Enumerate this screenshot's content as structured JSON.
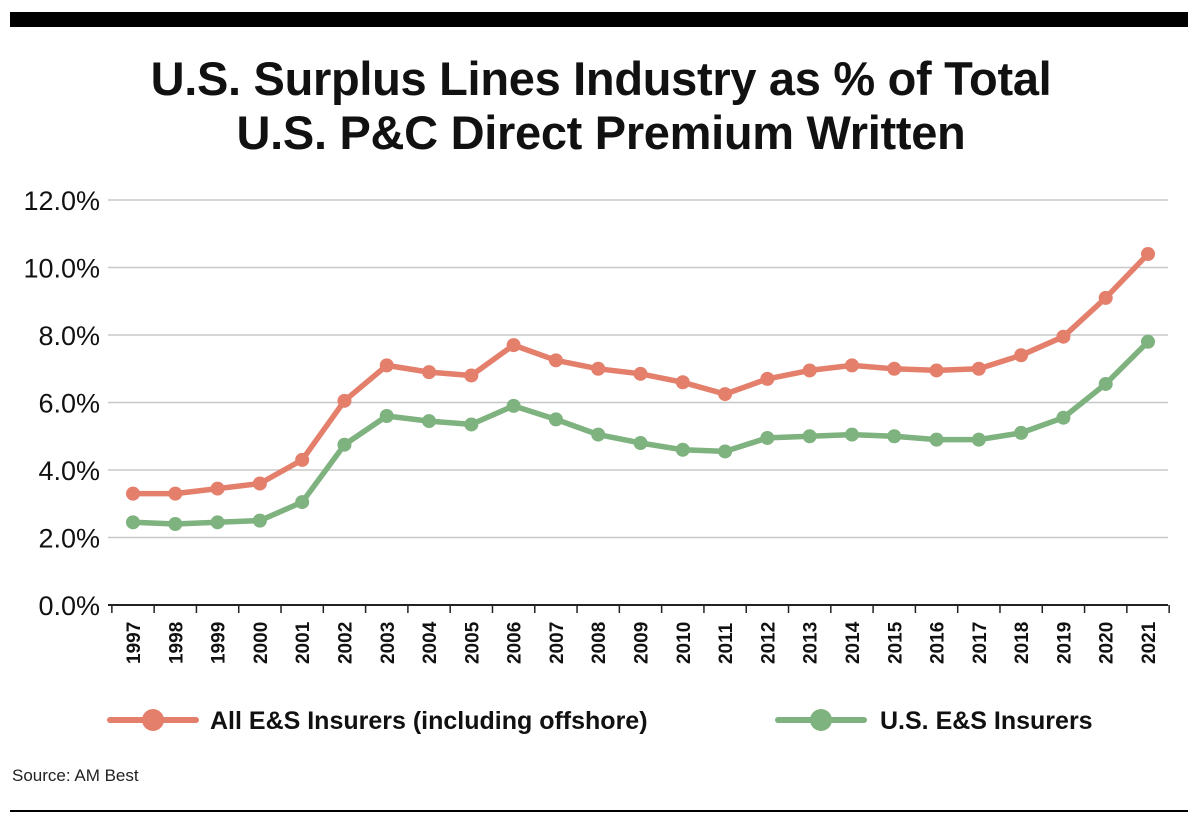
{
  "header": {
    "title_line1": "U.S. Surplus Lines Industry as % of Total",
    "title_line2": "U.S. P&C Direct Premium Written"
  },
  "footer": {
    "source": "Source: AM Best"
  },
  "chart_data": {
    "type": "line",
    "title": "U.S. Surplus Lines Industry as % of Total U.S. P&C Direct Premium Written",
    "xlabel": "",
    "ylabel": "",
    "categories": [
      "1997",
      "1998",
      "1999",
      "2000",
      "2001",
      "2002",
      "2003",
      "2004",
      "2005",
      "2006",
      "2007",
      "2008",
      "2009",
      "2010",
      "2011",
      "2012",
      "2013",
      "2014",
      "2015",
      "2016",
      "2017",
      "2018",
      "2019",
      "2020",
      "2021"
    ],
    "ylim": [
      0,
      12
    ],
    "yticks": [
      0,
      2,
      4,
      6,
      8,
      10,
      12
    ],
    "ytick_labels": [
      "0.0%",
      "2.0%",
      "4.0%",
      "6.0%",
      "8.0%",
      "10.0%",
      "12.0%"
    ],
    "grid": true,
    "legend_position": "bottom",
    "series": [
      {
        "name": "All E&S Insurers (including offshore)",
        "color": "#e47f6c",
        "values": [
          3.3,
          3.3,
          3.45,
          3.6,
          4.3,
          6.05,
          7.1,
          6.9,
          6.8,
          7.7,
          7.25,
          7.0,
          6.85,
          6.6,
          6.25,
          6.7,
          6.95,
          7.1,
          7.0,
          6.95,
          7.0,
          7.4,
          7.95,
          9.1,
          10.4
        ]
      },
      {
        "name": "U.S. E&S Insurers",
        "color": "#7eb27f",
        "values": [
          2.45,
          2.4,
          2.45,
          2.5,
          3.05,
          4.75,
          5.6,
          5.45,
          5.35,
          5.9,
          5.5,
          5.05,
          4.8,
          4.6,
          4.55,
          4.95,
          5.0,
          5.05,
          5.0,
          4.9,
          4.9,
          5.1,
          5.55,
          6.55,
          7.8
        ]
      }
    ]
  }
}
